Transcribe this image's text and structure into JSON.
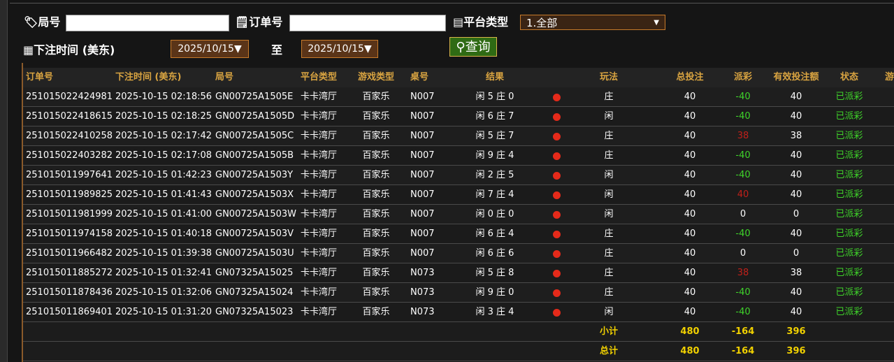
{
  "filters": {
    "round_label": "局号",
    "order_label": "订单号",
    "platform_label": "平台类型",
    "platform_value": "1.全部",
    "time_label": "下注时间 (美东)",
    "date_from": "2025/10/15▼",
    "to_label": "至",
    "date_to": "2025/10/15▼",
    "query_button": "查询"
  },
  "table": {
    "headers": [
      "订单号",
      "下注时间 (美东)",
      "局号",
      "平台类型",
      "游戏类型",
      "桌号",
      "结果",
      "玩法",
      "总投注",
      "派彩",
      "有效投注额",
      "状态",
      "游"
    ],
    "rows": [
      [
        "251015022424981",
        "2025-10-15 02:18:56",
        "GN00725A1505E",
        "卡卡湾厅",
        "百家乐",
        "N007",
        "闲 5 庄 0",
        "庄",
        40,
        -40,
        40,
        "已派彩"
      ],
      [
        "251015022418615",
        "2025-10-15 02:18:25",
        "GN00725A1505D",
        "卡卡湾厅",
        "百家乐",
        "N007",
        "闲 6 庄 7",
        "闲",
        40,
        -40,
        40,
        "已派彩"
      ],
      [
        "251015022410258",
        "2025-10-15 02:17:42",
        "GN00725A1505C",
        "卡卡湾厅",
        "百家乐",
        "N007",
        "闲 5 庄 7",
        "庄",
        40,
        38,
        38,
        "已派彩"
      ],
      [
        "251015022403282",
        "2025-10-15 02:17:08",
        "GN00725A1505B",
        "卡卡湾厅",
        "百家乐",
        "N007",
        "闲 9 庄 4",
        "庄",
        40,
        -40,
        40,
        "已派彩"
      ],
      [
        "251015011997641",
        "2025-10-15 01:42:23",
        "GN00725A1503Y",
        "卡卡湾厅",
        "百家乐",
        "N007",
        "闲 2 庄 5",
        "闲",
        40,
        -40,
        40,
        "已派彩"
      ],
      [
        "251015011989825",
        "2025-10-15 01:41:43",
        "GN00725A1503X",
        "卡卡湾厅",
        "百家乐",
        "N007",
        "闲 7 庄 4",
        "闲",
        40,
        40,
        40,
        "已派彩"
      ],
      [
        "251015011981999",
        "2025-10-15 01:41:00",
        "GN00725A1503W",
        "卡卡湾厅",
        "百家乐",
        "N007",
        "闲 0 庄 0",
        "闲",
        40,
        0,
        0,
        "已派彩"
      ],
      [
        "251015011974158",
        "2025-10-15 01:40:18",
        "GN00725A1503V",
        "卡卡湾厅",
        "百家乐",
        "N007",
        "闲 6 庄 4",
        "庄",
        40,
        -40,
        40,
        "已派彩"
      ],
      [
        "251015011966482",
        "2025-10-15 01:39:38",
        "GN00725A1503U",
        "卡卡湾厅",
        "百家乐",
        "N007",
        "闲 6 庄 6",
        "庄",
        40,
        0,
        0,
        "已派彩"
      ],
      [
        "251015011885272",
        "2025-10-15 01:32:41",
        "GN07325A15025",
        "卡卡湾厅",
        "百家乐",
        "N073",
        "闲 5 庄 8",
        "庄",
        40,
        38,
        38,
        "已派彩"
      ],
      [
        "251015011878436",
        "2025-10-15 01:32:06",
        "GN07325A15024",
        "卡卡湾厅",
        "百家乐",
        "N073",
        "闲 9 庄 0",
        "庄",
        40,
        -40,
        40,
        "已派彩"
      ],
      [
        "251015011869401",
        "2025-10-15 01:31:20",
        "GN07325A15023",
        "卡卡湾厅",
        "百家乐",
        "N073",
        "闲 3 庄 4",
        "闲",
        40,
        -40,
        40,
        "已派彩"
      ]
    ],
    "subtotal": [
      "小计",
      480,
      -164,
      396
    ],
    "total": [
      "总计",
      480,
      -164,
      396
    ]
  }
}
